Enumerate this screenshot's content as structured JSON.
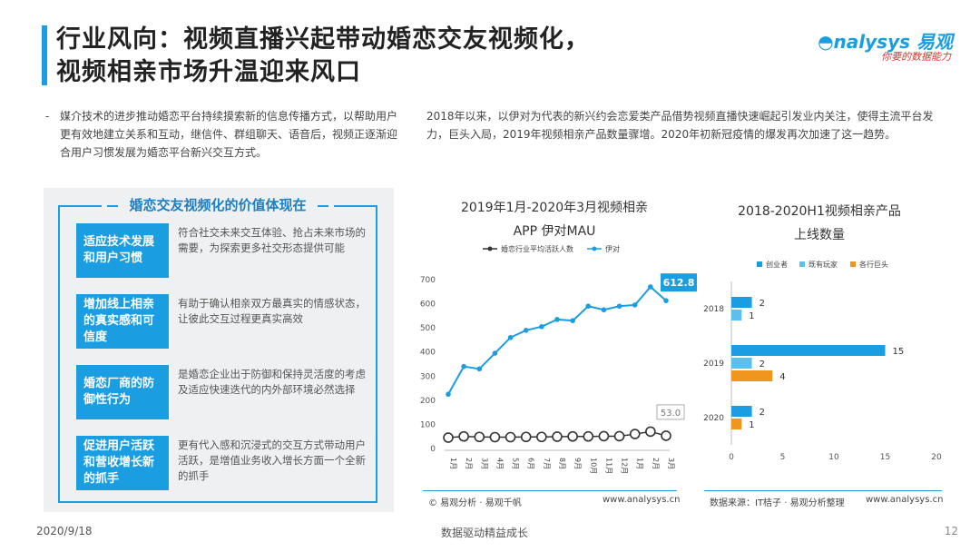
{
  "header": {
    "title_line1": "行业风向：视频直播兴起带动婚恋交友视频化，",
    "title_line2": "视频相亲市场升温迎来风口",
    "logo_main": "nalysys",
    "logo_cn": "易观",
    "logo_sub": "你要的数据能力"
  },
  "intro": {
    "left_dash": "-",
    "left_text": "媒介技术的进步推动婚恋平台持续摸索新的信息传播方式，以帮助用户更有效地建立关系和互动，继信件、群组聊天、语音后，视频正逐渐迎合用户习惯发展为婚恋平台新兴交互方式。",
    "right_text": "2018年以来，以伊对为代表的新兴约会恋爱类产品借势视频直播快速崛起引发业内关注，使得主流平台发力，巨头入局，2019年视频相亲产品数量骤增。2020年初新冠疫情的爆发再次加速了这一趋势。"
  },
  "value_box": {
    "heading": "婚恋交友视频化的价值体现在",
    "items": [
      {
        "label": "适应技术发展和用户习惯",
        "desc": "符合社交未来交互体验、抢占未来市场的需要，为探索更多社交形态提供可能"
      },
      {
        "label": "增加线上相亲的真实感和可信度",
        "desc": "有助于确认相亲双方最真实的情感状态，让彼此交互过程更真实高效"
      },
      {
        "label": "婚恋厂商的防御性行为",
        "desc": "是婚恋企业出于防御和保持灵活度的考虑及适应快速迭代的内外部环境必然选择"
      },
      {
        "label": "促进用户活跃和营收增长新的抓手",
        "desc": "更有代入感和沉浸式的交互方式带动用户活跃，是增值业务收入增长方面一个全新的抓手"
      }
    ]
  },
  "chart_left_source": "© 易观分析 · 易观千帆",
  "chart_left_site": "www.analysys.cn",
  "chart_right_source": "数据来源：IT桔子 · 易观分析整理",
  "chart_right_site": "www.analysys.cn",
  "footer": {
    "date": "2020/9/18",
    "center": "数据驱动精益成长",
    "page": "12"
  },
  "chart_data": [
    {
      "type": "line",
      "title": "2019年1月-2020年3月视频相亲APP 伊对MAU",
      "title_line1": "2019年1月-2020年3月视频相亲",
      "title_line2": "APP 伊对MAU",
      "categories": [
        "1月",
        "2月",
        "3月",
        "4月",
        "5月",
        "6月",
        "7月",
        "8月",
        "9月",
        "10月",
        "11月",
        "12月",
        "1月",
        "2月",
        "3月"
      ],
      "series": [
        {
          "name": "婚恋行业平均活跃人数",
          "color": "#333333",
          "values": [
            45,
            50,
            48,
            47,
            47,
            48,
            48,
            49,
            50,
            50,
            51,
            51,
            60,
            70,
            53.0
          ]
        },
        {
          "name": "伊对",
          "color": "#1b9de2",
          "values": [
            225,
            340,
            330,
            395,
            460,
            490,
            505,
            535,
            530,
            590,
            575,
            590,
            595,
            670,
            612.8
          ]
        }
      ],
      "callouts": [
        "612.8",
        "53.0"
      ],
      "ylim": [
        0,
        700
      ],
      "yticks": [
        0,
        100,
        200,
        300,
        400,
        500,
        600,
        700
      ],
      "legend": "top"
    },
    {
      "type": "bar",
      "orientation": "horizontal",
      "title": "2018-2020H1视频相亲产品上线数量",
      "title_line1": "2018-2020H1视频相亲产品",
      "title_line2": "上线数量",
      "categories": [
        "2018",
        "2019",
        "2020"
      ],
      "series": [
        {
          "name": "创业者",
          "color": "#1b9de2",
          "values": [
            2,
            15,
            2
          ]
        },
        {
          "name": "既有玩家",
          "color": "#5cc0ee",
          "values": [
            1,
            2,
            null
          ]
        },
        {
          "name": "各行巨头",
          "color": "#f0961e",
          "values": [
            null,
            4,
            1
          ]
        }
      ],
      "xlim": [
        0,
        20
      ],
      "xticks": [
        0,
        5,
        10,
        15,
        20
      ],
      "legend": "top"
    }
  ]
}
